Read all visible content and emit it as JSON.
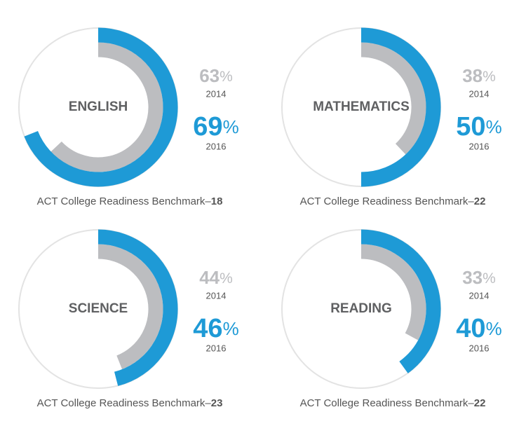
{
  "chart_data": [
    {
      "type": "radial",
      "title": "ENGLISH",
      "unit": "%",
      "max": 100,
      "series": [
        {
          "name": "2014",
          "color": "#bcbdc0",
          "values": [
            63
          ]
        },
        {
          "name": "2016",
          "color": "#1e9ad6",
          "values": [
            69
          ]
        }
      ],
      "benchmark_label": "ACT College Readiness Benchmark–",
      "benchmark": 18
    },
    {
      "type": "radial",
      "title": "MATHEMATICS",
      "unit": "%",
      "max": 100,
      "series": [
        {
          "name": "2014",
          "color": "#bcbdc0",
          "values": [
            38
          ]
        },
        {
          "name": "2016",
          "color": "#1e9ad6",
          "values": [
            50
          ]
        }
      ],
      "benchmark_label": "ACT College Readiness Benchmark–",
      "benchmark": 22
    },
    {
      "type": "radial",
      "title": "SCIENCE",
      "unit": "%",
      "max": 100,
      "series": [
        {
          "name": "2014",
          "color": "#bcbdc0",
          "values": [
            44
          ]
        },
        {
          "name": "2016",
          "color": "#1e9ad6",
          "values": [
            46
          ]
        }
      ],
      "benchmark_label": "ACT College Readiness Benchmark–",
      "benchmark": 23
    },
    {
      "type": "radial",
      "title": "READING",
      "unit": "%",
      "max": 100,
      "series": [
        {
          "name": "2014",
          "color": "#bcbdc0",
          "values": [
            33
          ]
        },
        {
          "name": "2016",
          "color": "#1e9ad6",
          "values": [
            40
          ]
        }
      ],
      "benchmark_label": "ACT College Readiness Benchmark–",
      "benchmark": 22
    }
  ]
}
